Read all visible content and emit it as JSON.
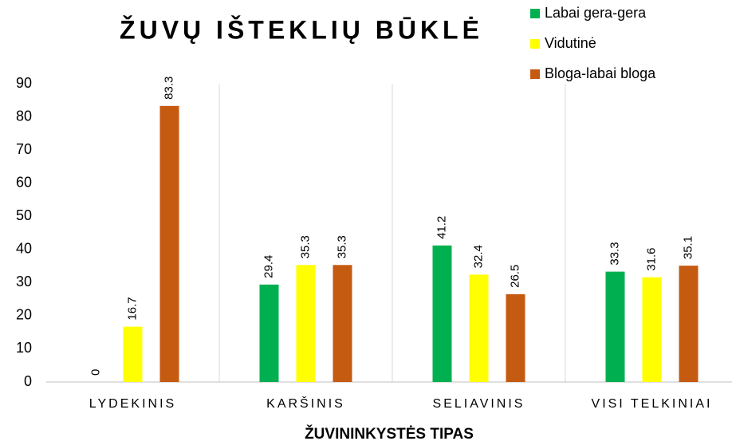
{
  "chart_data": {
    "type": "bar",
    "title": "ŽUVŲ IŠTEKLIŲ BŪKLĖ",
    "x_label": "ŽUVININKYSTĖS TIPAS",
    "categories": [
      "LYDEKINIS",
      "KARŠINIS",
      "SELIAVINIS",
      "VISI TELKINIAI"
    ],
    "series": [
      {
        "name": "Labai gera-gera",
        "color": "#00b050",
        "values": [
          0,
          29.4,
          41.2,
          33.3
        ]
      },
      {
        "name": "Vidutinė",
        "color": "#ffff00",
        "values": [
          16.7,
          35.3,
          32.4,
          31.6
        ]
      },
      {
        "name": "Bloga-labai bloga",
        "color": "#c55a11",
        "values": [
          83.3,
          35.3,
          26.5,
          35.1
        ]
      }
    ],
    "ylim": [
      0,
      90
    ],
    "yticks": [
      0,
      10,
      20,
      30,
      40,
      50,
      60,
      70,
      80,
      90
    ],
    "legend": "top-right"
  }
}
